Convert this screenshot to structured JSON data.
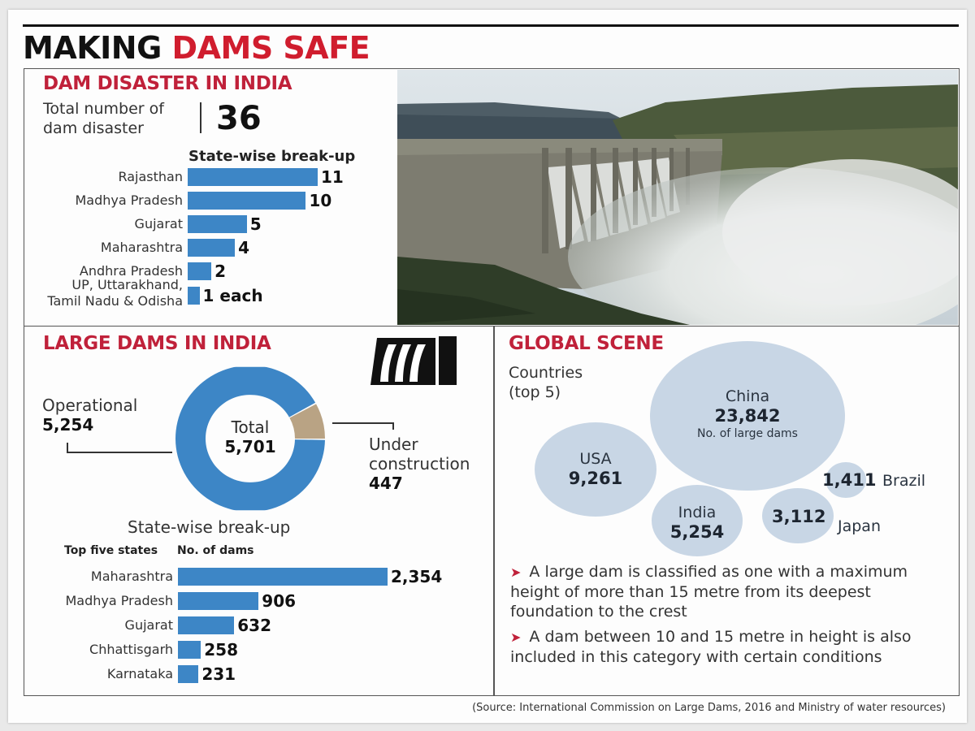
{
  "title": {
    "part1": "MAKING",
    "part2": "DAMS SAFE"
  },
  "colors": {
    "accent_red": "#c0213a",
    "bar_blue": "#3d86c6",
    "donut_tan": "#b9a384",
    "bubble_blue": "#c8d6e5"
  },
  "disaster": {
    "heading": "DAM DISASTER IN INDIA",
    "total_label_line1": "Total number of",
    "total_label_line2": "dam disaster",
    "total_value": "36",
    "breakup_heading": "State-wise break-up"
  },
  "large_dams": {
    "heading": "LARGE DAMS IN INDIA",
    "icon": "dam-spillway-icon",
    "operational_label": "Operational",
    "operational_value": "5,254",
    "total_label": "Total",
    "total_value": "5,701",
    "under_construction_label_line1": "Under",
    "under_construction_label_line2": "construction",
    "under_construction_value": "447",
    "breakup_heading": "State-wise break-up",
    "col_states": "Top five states",
    "col_dams": "No. of dams"
  },
  "global": {
    "heading": "GLOBAL SCENE",
    "subtitle_line1": "Countries",
    "subtitle_line2": "(top 5)",
    "china_caption": "No. of large dams",
    "notes": [
      "A large dam is classified as one with a maximum height of more than 15 metre from its deepest foundation to the crest",
      "A dam between 10 and 15 metre in height is also included in this category with certain conditions"
    ]
  },
  "source": "(Source: International Commission on Large Dams, 2016 and Ministry of water resources)",
  "chart_data": [
    {
      "type": "bar",
      "orientation": "horizontal",
      "title": "Dam disaster in India — State-wise break-up",
      "categories": [
        "Rajasthan",
        "Madhya Pradesh",
        "Gujarat",
        "Maharashtra",
        "Andhra Pradesh",
        "UP, Uttarakhand, Tamil Nadu & Odisha"
      ],
      "values": [
        11,
        10,
        5,
        4,
        2,
        1
      ],
      "value_labels": [
        "11",
        "10",
        "5",
        "4",
        "2",
        "1 each"
      ],
      "total": 36
    },
    {
      "type": "pie",
      "donut": true,
      "title": "Large dams in India",
      "categories": [
        "Operational",
        "Under construction"
      ],
      "values": [
        5254,
        447
      ],
      "value_labels": [
        "5,254",
        "447"
      ],
      "center_label": "Total",
      "center_value": "5,701"
    },
    {
      "type": "bar",
      "orientation": "horizontal",
      "title": "Large dams — State-wise break-up (Top five states)",
      "xlabel": "No. of dams",
      "ylabel": "Top five states",
      "categories": [
        "Maharashtra",
        "Madhya Pradesh",
        "Gujarat",
        "Chhattisgarh",
        "Karnataka"
      ],
      "values": [
        2354,
        906,
        632,
        258,
        231
      ],
      "value_labels": [
        "2,354",
        "906",
        "632",
        "258",
        "231"
      ]
    },
    {
      "type": "scatter",
      "subtype": "bubble",
      "title": "Global scene — Countries (top 5), No. of large dams",
      "categories": [
        "China",
        "USA",
        "India",
        "Japan",
        "Brazil"
      ],
      "values": [
        23842,
        9261,
        5254,
        3112,
        1411
      ],
      "value_labels": [
        "23,842",
        "9,261",
        "5,254",
        "3,112",
        "1,411"
      ]
    }
  ]
}
